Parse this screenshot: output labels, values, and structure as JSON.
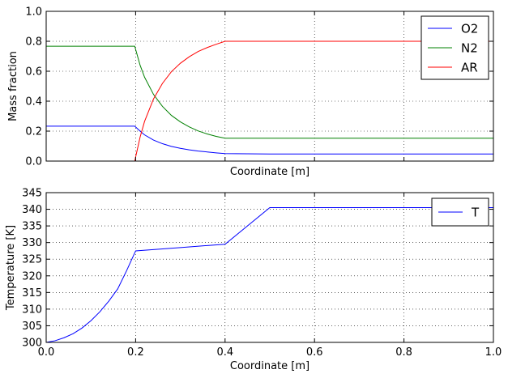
{
  "chart_data": [
    {
      "type": "line",
      "xlabel": "Coordinate [m]",
      "ylabel": "Mass fraction",
      "xlim": [
        0,
        1
      ],
      "ylim": [
        0,
        1
      ],
      "x_ticks": [
        0,
        0.2,
        0.4,
        0.6,
        0.8,
        1.0
      ],
      "x_tick_labels_shown": false,
      "y_ticks": [
        0,
        0.2,
        0.4,
        0.6,
        0.8,
        1.0
      ],
      "y_tick_labels": [
        "0.0",
        "0.2",
        "0.4",
        "0.6",
        "0.8",
        "1.0"
      ],
      "grid": true,
      "legend": "top-right",
      "series": [
        {
          "name": "O2",
          "color": "#0000ff",
          "x": [
            0,
            0.198,
            0.21,
            0.22,
            0.24,
            0.26,
            0.28,
            0.3,
            0.32,
            0.34,
            0.36,
            0.38,
            0.4,
            0.5,
            0.6,
            0.7,
            0.8,
            0.9,
            1.0
          ],
          "y": [
            0.233,
            0.233,
            0.2,
            0.175,
            0.14,
            0.116,
            0.098,
            0.085,
            0.075,
            0.067,
            0.061,
            0.055,
            0.05,
            0.047,
            0.047,
            0.047,
            0.047,
            0.047,
            0.047
          ]
        },
        {
          "name": "N2",
          "color": "#008000",
          "x": [
            0,
            0.198,
            0.21,
            0.22,
            0.24,
            0.26,
            0.28,
            0.3,
            0.32,
            0.34,
            0.36,
            0.38,
            0.4,
            0.5,
            0.6,
            0.7,
            0.8,
            0.9,
            1.0
          ],
          "y": [
            0.767,
            0.767,
            0.64,
            0.56,
            0.445,
            0.365,
            0.305,
            0.262,
            0.228,
            0.201,
            0.181,
            0.165,
            0.153,
            0.153,
            0.153,
            0.153,
            0.153,
            0.153,
            0.153
          ]
        },
        {
          "name": "AR",
          "color": "#ff0000",
          "x": [
            0,
            0.198,
            0.21,
            0.22,
            0.24,
            0.26,
            0.28,
            0.3,
            0.32,
            0.34,
            0.36,
            0.38,
            0.4,
            0.5,
            0.6,
            0.7,
            0.8,
            0.9,
            1.0
          ],
          "y": [
            0,
            0,
            0.16,
            0.265,
            0.415,
            0.519,
            0.597,
            0.653,
            0.697,
            0.732,
            0.758,
            0.78,
            0.8,
            0.8,
            0.8,
            0.8,
            0.8,
            0.8,
            0.8
          ]
        }
      ]
    },
    {
      "type": "line",
      "xlabel": "Coordinate [m]",
      "ylabel": "Temperature [K]",
      "xlim": [
        0,
        1
      ],
      "ylim": [
        300,
        345
      ],
      "x_ticks": [
        0,
        0.2,
        0.4,
        0.6,
        0.8,
        1.0
      ],
      "x_tick_labels": [
        "0.0",
        "0.2",
        "0.4",
        "0.6",
        "0.8",
        "1.0"
      ],
      "y_ticks": [
        300,
        305,
        310,
        315,
        320,
        325,
        330,
        335,
        340,
        345
      ],
      "y_tick_labels": [
        "300",
        "305",
        "310",
        "315",
        "320",
        "325",
        "330",
        "335",
        "340",
        "345"
      ],
      "grid": true,
      "legend": "top-right",
      "series": [
        {
          "name": "T",
          "color": "#0000ff",
          "x": [
            0,
            0.02,
            0.04,
            0.06,
            0.08,
            0.1,
            0.12,
            0.14,
            0.16,
            0.18,
            0.2,
            0.3,
            0.4,
            0.5,
            0.6,
            0.7,
            0.8,
            0.9,
            1.0
          ],
          "y": [
            300,
            300.5,
            301.4,
            302.6,
            304.3,
            306.5,
            309.2,
            312.4,
            316.1,
            321.6,
            327.5,
            328.5,
            329.5,
            340.5,
            340.5,
            340.5,
            340.5,
            340.5,
            340.5
          ]
        }
      ]
    }
  ]
}
